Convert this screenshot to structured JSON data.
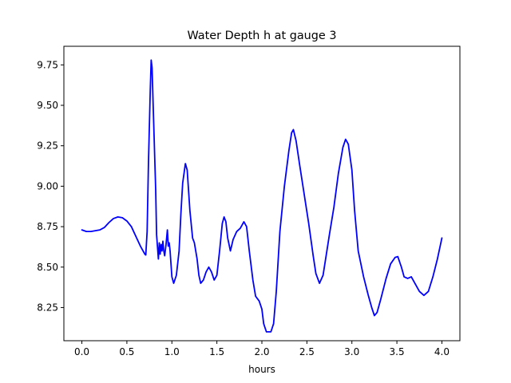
{
  "chart_data": {
    "type": "line",
    "title": "Water Depth h at gauge 3",
    "xlabel": "hours",
    "ylabel": "",
    "xlim": [
      -0.2,
      4.2
    ],
    "ylim": [
      8.045,
      9.865
    ],
    "xticks": [
      0.0,
      0.5,
      1.0,
      1.5,
      2.0,
      2.5,
      3.0,
      3.5,
      4.0
    ],
    "xtick_labels": [
      "0.0",
      "0.5",
      "1.0",
      "1.5",
      "2.0",
      "2.5",
      "3.0",
      "3.5",
      "4.0"
    ],
    "yticks": [
      8.25,
      8.5,
      8.75,
      9.0,
      9.25,
      9.5,
      9.75
    ],
    "ytick_labels": [
      "8.25",
      "8.50",
      "8.75",
      "9.00",
      "9.25",
      "9.50",
      "9.75"
    ],
    "grid": false,
    "series": [
      {
        "color": "#0000ff",
        "points": [
          [
            0.0,
            8.73
          ],
          [
            0.05,
            8.72
          ],
          [
            0.1,
            8.72
          ],
          [
            0.2,
            8.73
          ],
          [
            0.25,
            8.745
          ],
          [
            0.3,
            8.775
          ],
          [
            0.35,
            8.8
          ],
          [
            0.4,
            8.81
          ],
          [
            0.45,
            8.805
          ],
          [
            0.5,
            8.785
          ],
          [
            0.55,
            8.75
          ],
          [
            0.6,
            8.69
          ],
          [
            0.65,
            8.63
          ],
          [
            0.7,
            8.58
          ],
          [
            0.71,
            8.575
          ],
          [
            0.725,
            8.72
          ],
          [
            0.74,
            9.15
          ],
          [
            0.76,
            9.6
          ],
          [
            0.77,
            9.78
          ],
          [
            0.78,
            9.73
          ],
          [
            0.8,
            9.35
          ],
          [
            0.82,
            8.98
          ],
          [
            0.83,
            8.7
          ],
          [
            0.85,
            8.55
          ],
          [
            0.86,
            8.65
          ],
          [
            0.87,
            8.58
          ],
          [
            0.88,
            8.64
          ],
          [
            0.89,
            8.6
          ],
          [
            0.9,
            8.66
          ],
          [
            0.91,
            8.6
          ],
          [
            0.92,
            8.57
          ],
          [
            0.935,
            8.64
          ],
          [
            0.95,
            8.73
          ],
          [
            0.96,
            8.63
          ],
          [
            0.97,
            8.65
          ],
          [
            0.98,
            8.6
          ],
          [
            1.0,
            8.44
          ],
          [
            1.02,
            8.4
          ],
          [
            1.05,
            8.45
          ],
          [
            1.08,
            8.6
          ],
          [
            1.1,
            8.83
          ],
          [
            1.12,
            9.02
          ],
          [
            1.15,
            9.14
          ],
          [
            1.17,
            9.1
          ],
          [
            1.2,
            8.85
          ],
          [
            1.23,
            8.68
          ],
          [
            1.25,
            8.65
          ],
          [
            1.28,
            8.55
          ],
          [
            1.3,
            8.45
          ],
          [
            1.32,
            8.4
          ],
          [
            1.35,
            8.42
          ],
          [
            1.38,
            8.47
          ],
          [
            1.41,
            8.5
          ],
          [
            1.44,
            8.47
          ],
          [
            1.47,
            8.42
          ],
          [
            1.5,
            8.45
          ],
          [
            1.53,
            8.6
          ],
          [
            1.56,
            8.77
          ],
          [
            1.58,
            8.81
          ],
          [
            1.6,
            8.78
          ],
          [
            1.62,
            8.68
          ],
          [
            1.65,
            8.6
          ],
          [
            1.68,
            8.67
          ],
          [
            1.72,
            8.72
          ],
          [
            1.76,
            8.74
          ],
          [
            1.8,
            8.78
          ],
          [
            1.83,
            8.75
          ],
          [
            1.86,
            8.6
          ],
          [
            1.9,
            8.42
          ],
          [
            1.93,
            8.32
          ],
          [
            1.97,
            8.29
          ],
          [
            2.0,
            8.24
          ],
          [
            2.02,
            8.15
          ],
          [
            2.05,
            8.1
          ],
          [
            2.1,
            8.1
          ],
          [
            2.13,
            8.15
          ],
          [
            2.16,
            8.35
          ],
          [
            2.2,
            8.72
          ],
          [
            2.25,
            9.0
          ],
          [
            2.3,
            9.22
          ],
          [
            2.33,
            9.33
          ],
          [
            2.35,
            9.35
          ],
          [
            2.38,
            9.28
          ],
          [
            2.42,
            9.13
          ],
          [
            2.47,
            8.95
          ],
          [
            2.52,
            8.77
          ],
          [
            2.57,
            8.57
          ],
          [
            2.6,
            8.46
          ],
          [
            2.64,
            8.4
          ],
          [
            2.68,
            8.45
          ],
          [
            2.75,
            8.7
          ],
          [
            2.8,
            8.87
          ],
          [
            2.85,
            9.08
          ],
          [
            2.9,
            9.24
          ],
          [
            2.93,
            9.29
          ],
          [
            2.96,
            9.26
          ],
          [
            3.0,
            9.1
          ],
          [
            3.03,
            8.85
          ],
          [
            3.07,
            8.6
          ],
          [
            3.13,
            8.44
          ],
          [
            3.18,
            8.33
          ],
          [
            3.22,
            8.25
          ],
          [
            3.25,
            8.2
          ],
          [
            3.28,
            8.22
          ],
          [
            3.32,
            8.3
          ],
          [
            3.38,
            8.43
          ],
          [
            3.43,
            8.52
          ],
          [
            3.48,
            8.56
          ],
          [
            3.51,
            8.565
          ],
          [
            3.55,
            8.5
          ],
          [
            3.58,
            8.44
          ],
          [
            3.62,
            8.43
          ],
          [
            3.66,
            8.44
          ],
          [
            3.7,
            8.4
          ],
          [
            3.75,
            8.35
          ],
          [
            3.8,
            8.325
          ],
          [
            3.85,
            8.35
          ],
          [
            3.9,
            8.44
          ],
          [
            3.95,
            8.55
          ],
          [
            4.0,
            8.68
          ]
        ]
      }
    ]
  }
}
